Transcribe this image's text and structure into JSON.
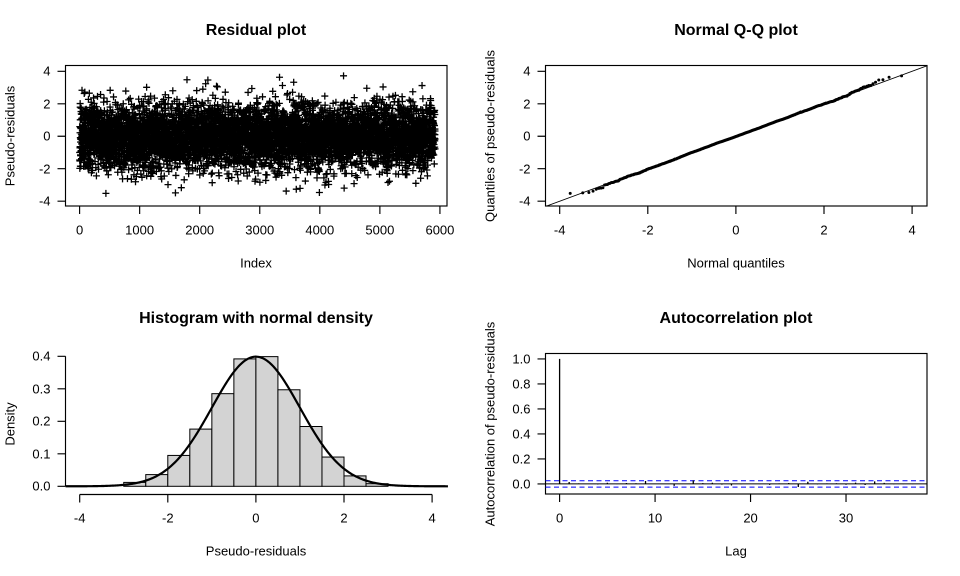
{
  "page": {
    "background": "#ffffff",
    "ink_color": "#000000",
    "layout": "2x2 grid of R-style diagnostic plots of pseudo-residuals"
  },
  "chart_data": [
    {
      "id": "residual-plot",
      "type": "scatter",
      "title": "Residual plot",
      "xlabel": "Index",
      "ylabel": "Pseudo-residuals",
      "grid": false,
      "frame_box": true,
      "marker": "plus",
      "marker_color": "#000000",
      "x_axis": {
        "tick_values": [
          0,
          1000,
          2000,
          3000,
          4000,
          5000,
          6000
        ],
        "tick_labels": [
          "0",
          "1000",
          "2000",
          "3000",
          "4000",
          "5000",
          "6000"
        ],
        "range": [
          -236,
          6118
        ]
      },
      "y_axis": {
        "tick_values": [
          -4,
          -2,
          0,
          2,
          4
        ],
        "tick_labels": [
          "-4",
          "-2",
          "0",
          "2",
          "4"
        ],
        "range": [
          -4.3,
          4.36
        ]
      },
      "series": {
        "name": "pseudo-residuals vs observation index",
        "n": 5920,
        "seed": 106,
        "distribution": "standard_normal",
        "mean": 0,
        "sd": 1,
        "y_min": -3.52,
        "y_max": 3.72
      }
    },
    {
      "id": "qq-plot",
      "type": "scatter",
      "title": "Normal Q-Q plot",
      "xlabel": "Normal quantiles",
      "ylabel": "Quantiles of pseudo-residuals",
      "grid": false,
      "frame_box": true,
      "marker": "dot",
      "marker_color": "#000000",
      "x_axis": {
        "tick_values": [
          -4,
          -2,
          0,
          2,
          4
        ],
        "tick_labels": [
          "-4",
          "-2",
          "0",
          "2",
          "4"
        ],
        "range": [
          -4.33,
          4.36
        ]
      },
      "y_axis": {
        "tick_values": [
          -4,
          -2,
          0,
          2,
          4
        ],
        "tick_labels": [
          "-4",
          "-2",
          "0",
          "2",
          "4"
        ],
        "range": [
          -4.3,
          4.36
        ]
      },
      "series": {
        "name": "sorted sample quantiles vs theoretical normal quantiles",
        "n": 5920,
        "seed": 106,
        "distribution": "standard_normal",
        "x_min": -3.76,
        "x_max": 3.76,
        "y_min": -3.52,
        "y_max": 3.72
      },
      "reference_line": {
        "through": "quartiles",
        "slope": 1,
        "intercept": 0,
        "color": "#000000",
        "width": 1
      }
    },
    {
      "id": "histogram",
      "type": "bar",
      "title": "Histogram with normal density",
      "xlabel": "Pseudo-residuals",
      "ylabel": "Density",
      "grid": false,
      "frame_box": false,
      "bar_fill": "#d3d3d3",
      "bar_stroke": "#000000",
      "x_axis": {
        "tick_values": [
          -4,
          -2,
          0,
          2,
          4
        ],
        "tick_labels": [
          "-4",
          "-2",
          "0",
          "2",
          "4"
        ],
        "range": [
          -4.32,
          4.36
        ]
      },
      "y_axis": {
        "tick_values": [
          0,
          0.1,
          0.2,
          0.3,
          0.4
        ],
        "tick_labels": [
          "0.0",
          "0.1",
          "0.2",
          "0.3",
          "0.4"
        ],
        "range": [
          -0.016,
          0.433
        ]
      },
      "bins": {
        "start": -3,
        "width": 0.5,
        "edges": [
          -3,
          -2.5,
          -2,
          -1.5,
          -1,
          -0.5,
          0,
          0.5,
          1,
          1.5,
          2,
          2.5,
          3
        ],
        "densities": [
          0.012,
          0.036,
          0.095,
          0.176,
          0.285,
          0.392,
          0.399,
          0.297,
          0.184,
          0.09,
          0.032,
          0.008
        ]
      },
      "curve": {
        "shape": "normal_density",
        "mean": 0,
        "sd": 1,
        "peak": 0.3989,
        "color": "#000000",
        "width": 2
      }
    },
    {
      "id": "acf-plot",
      "type": "bar",
      "title": "Autocorrelation plot",
      "xlabel": "Lag",
      "ylabel": "Autocorrelation of pseudo-residuals",
      "grid": false,
      "frame_box": true,
      "spike_color": "#000000",
      "x_axis": {
        "tick_values": [
          0,
          10,
          20,
          30
        ],
        "tick_labels": [
          "0",
          "10",
          "20",
          "30"
        ],
        "range": [
          -1.48,
          38.48
        ]
      },
      "y_axis": {
        "tick_values": [
          0,
          0.2,
          0.4,
          0.6,
          0.8,
          1.0
        ],
        "tick_labels": [
          "0.0",
          "0.2",
          "0.4",
          "0.6",
          "0.8",
          "1.0"
        ],
        "range": [
          -0.088,
          1.036
        ]
      },
      "lags": [
        0,
        1,
        2,
        3,
        4,
        5,
        6,
        7,
        8,
        9,
        10,
        11,
        12,
        13,
        14,
        15,
        16,
        17,
        18,
        19,
        20,
        21,
        22,
        23,
        24,
        25,
        26,
        27,
        28,
        29,
        30,
        31,
        32,
        33,
        34,
        35,
        36,
        37
      ],
      "acf_values": [
        1.0,
        0.0157,
        0.0047,
        0.0008,
        -0.0046,
        0.0092,
        -0.0018,
        0.0069,
        0.0052,
        0.0231,
        0.0002,
        -0.0002,
        -0.0154,
        -0.0008,
        0.0287,
        0.0062,
        0.0092,
        -0.0056,
        -0.013,
        -0.003,
        -0.0006,
        -0.0015,
        -0.0077,
        0.0044,
        0.0073,
        -0.0245,
        0.0172,
        -0.0039,
        0.0044,
        0.005,
        -0.0067,
        0.0099,
        -0.0091,
        0.0203,
        0.0087,
        -0.0026,
        -0.0017,
        -0.0022
      ],
      "zero_line": {
        "value": 0,
        "color": "#000000",
        "style": "solid"
      },
      "confidence_band": {
        "level": 0.95,
        "value": 0.0255,
        "color": "#0000ff",
        "style": "dashed"
      }
    }
  ]
}
